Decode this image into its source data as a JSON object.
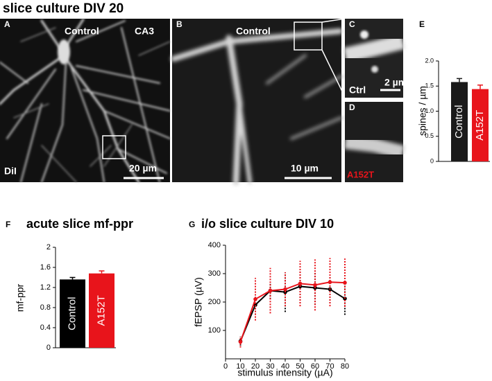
{
  "title": "slice culture DIV 20",
  "panels": {
    "A": {
      "letter": "A",
      "labels": [
        "Control",
        "CA3",
        "DiI"
      ],
      "scale_bar": "20 µm"
    },
    "B": {
      "letter": "B",
      "labels": [
        "Control"
      ],
      "scale_bar": "10 µm"
    },
    "C": {
      "letter": "C",
      "labels": [
        "Ctrl"
      ],
      "scale_bar": "2 µm"
    },
    "D": {
      "letter": "D",
      "labels": [
        "A152T"
      ]
    }
  },
  "chart_data": [
    {
      "type": "bar",
      "panel": "E",
      "y_label": "spines / µm",
      "categories": [
        "Control",
        "A152T"
      ],
      "values": [
        1.58,
        1.44
      ],
      "errors": [
        0.07,
        0.08
      ],
      "colors": [
        "#1a1a1a",
        "#e8141b"
      ],
      "ylim": [
        0,
        2
      ],
      "yticks": [
        0,
        0.5,
        {
          "value": 1,
          "label": "1.0"
        },
        1.5,
        {
          "value": 2,
          "label": "2.0"
        }
      ]
    },
    {
      "type": "bar",
      "panel": "F",
      "title": "acute slice mf-ppr",
      "y_label": "mf-ppr",
      "categories": [
        "Control",
        "A152T"
      ],
      "values": [
        1.36,
        1.48
      ],
      "errors": [
        0.04,
        0.05
      ],
      "colors": [
        "#000000",
        "#e8141b"
      ],
      "ylim": [
        0,
        2
      ],
      "yticks": [
        0,
        0.4,
        0.8,
        1.2,
        1.6,
        2
      ]
    },
    {
      "type": "line",
      "panel": "G",
      "title": "i/o slice culture DIV 10",
      "x_label": "stimulus intensity (µA)",
      "y_label": "fEPSP (µV)",
      "x": [
        10,
        20,
        30,
        40,
        50,
        60,
        70,
        80
      ],
      "series": [
        {
          "color": "#000000",
          "values": [
            62,
            190,
            240,
            235,
            255,
            250,
            245,
            212
          ],
          "errors": [
            15,
            35,
            30,
            70,
            60,
            60,
            50,
            57
          ]
        },
        {
          "color": "#e8141b",
          "values": [
            60,
            210,
            240,
            245,
            265,
            260,
            270,
            268
          ],
          "errors": [
            20,
            75,
            80,
            60,
            80,
            90,
            85,
            85
          ]
        }
      ],
      "xlim": [
        0,
        80
      ],
      "xticks": [
        0,
        10,
        20,
        30,
        40,
        50,
        60,
        70,
        80
      ],
      "ylim": [
        0,
        400
      ],
      "yticks": [
        100,
        200,
        300,
        400
      ]
    }
  ]
}
